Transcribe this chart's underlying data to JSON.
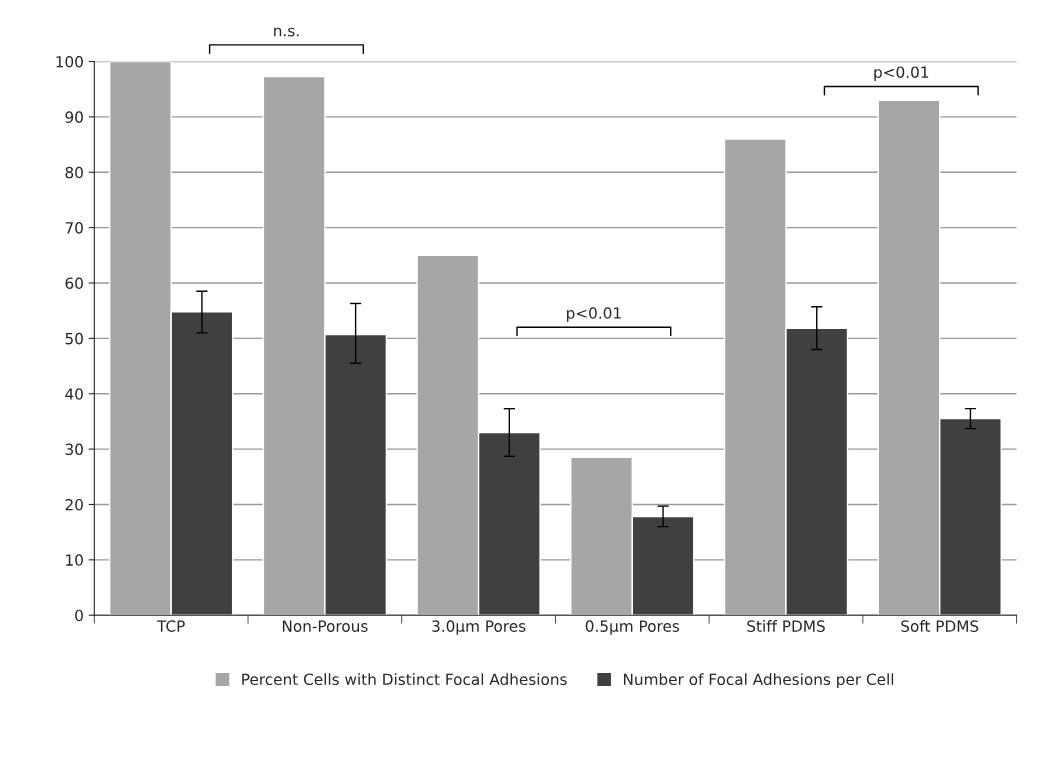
{
  "chart_data": {
    "type": "bar",
    "categories": [
      "TCP",
      "Non-Porous",
      "3.0µm Pores",
      "0.5µm Pores",
      "Stiff PDMS",
      "Soft PDMS"
    ],
    "series": [
      {
        "name": "Percent Cells with Distinct Focal Adhesions",
        "color": "#a6a6a6",
        "values": [
          100,
          97.3,
          65,
          28.5,
          86,
          93
        ]
      },
      {
        "name": "Number of Focal Adhesions per Cell",
        "color": "#404040",
        "values": [
          54.8,
          50.7,
          33,
          17.8,
          51.8,
          35.5
        ],
        "errors": [
          [
            51,
            58.5
          ],
          [
            45.5,
            56.3
          ],
          [
            28.7,
            37.3
          ],
          [
            16,
            19.7
          ],
          [
            48,
            55.7
          ],
          [
            33.7,
            37.3
          ]
        ]
      }
    ],
    "ylim": [
      0,
      100
    ],
    "yticks": [
      0,
      10,
      20,
      30,
      40,
      50,
      60,
      70,
      80,
      90,
      100
    ],
    "grid": "y",
    "legend": "bottom",
    "annotations": [
      "n.s.",
      "p<0.01",
      "p<0.01"
    ]
  }
}
